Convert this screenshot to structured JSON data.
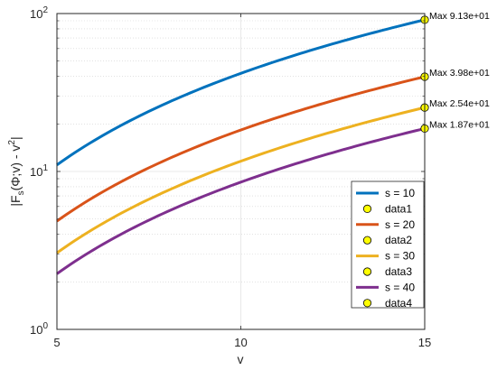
{
  "chart_data": {
    "type": "line",
    "xlabel": "v",
    "ylabel_parts": [
      "|F",
      "s",
      "(Φ;v) - v",
      "2",
      "|"
    ],
    "xlim": [
      5,
      15
    ],
    "ylim": [
      1,
      100
    ],
    "yscale": "log",
    "grid": true,
    "legend_placement": "lower-right",
    "x_ticks": [
      "5",
      "10",
      "15"
    ],
    "y_ticks": [
      {
        "base": "10",
        "exp": "0"
      },
      {
        "base": "10",
        "exp": "1"
      },
      {
        "base": "10",
        "exp": "2"
      }
    ],
    "series": [
      {
        "name": "s = 10",
        "color": "#0072BD",
        "start": [
          5,
          11.0
        ],
        "end": [
          15,
          91.3
        ]
      },
      {
        "name": "s = 20",
        "color": "#D95319",
        "start": [
          5,
          4.85
        ],
        "end": [
          15,
          39.8
        ]
      },
      {
        "name": "s = 30",
        "color": "#EDB120",
        "start": [
          5,
          3.05
        ],
        "end": [
          15,
          25.4
        ]
      },
      {
        "name": "s = 40",
        "color": "#7E2F8E",
        "start": [
          5,
          2.25
        ],
        "end": [
          15,
          18.7
        ]
      }
    ],
    "markers": [
      {
        "name": "data1",
        "x": 15,
        "y": 91.3,
        "label": "Max 9.13e+01"
      },
      {
        "name": "data2",
        "x": 15,
        "y": 39.8,
        "label": "Max 3.98e+01"
      },
      {
        "name": "data3",
        "x": 15,
        "y": 25.4,
        "label": "Max 2.54e+01"
      },
      {
        "name": "data4",
        "x": 15,
        "y": 18.7,
        "label": "Max 1.87e+01"
      }
    ],
    "marker_color": "#FFFF00"
  }
}
